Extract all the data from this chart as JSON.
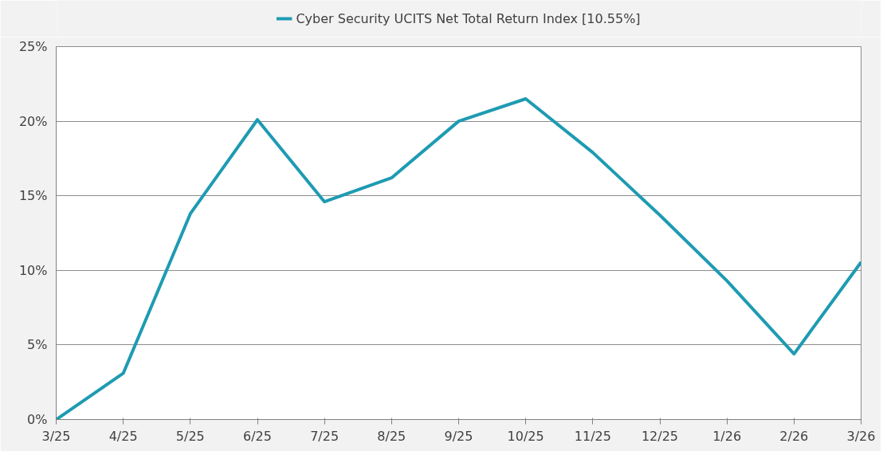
{
  "chart_data": {
    "type": "line",
    "categories": [
      "3/25",
      "4/25",
      "5/25",
      "6/25",
      "7/25",
      "8/25",
      "9/25",
      "10/25",
      "11/25",
      "12/25",
      "1/26",
      "2/26",
      "3/26"
    ],
    "series": [
      {
        "name": "Cyber Security UCITS Net Total Return Index [10.55%]",
        "color": "#1e9bb2",
        "values": [
          0,
          3.1,
          13.8,
          20.1,
          14.6,
          16.2,
          20.0,
          21.5,
          17.9,
          13.7,
          9.3,
          4.4,
          10.55
        ]
      }
    ],
    "ylim": [
      0,
      25
    ],
    "yticks": [
      {
        "value": 0,
        "label": "0%"
      },
      {
        "value": 5,
        "label": "5%"
      },
      {
        "value": 10,
        "label": "10%"
      },
      {
        "value": 15,
        "label": "15%"
      },
      {
        "value": 20,
        "label": "20%"
      },
      {
        "value": 25,
        "label": "25%"
      }
    ],
    "grid": "y",
    "legend": "top",
    "marker": "none",
    "line_style": "solid"
  }
}
